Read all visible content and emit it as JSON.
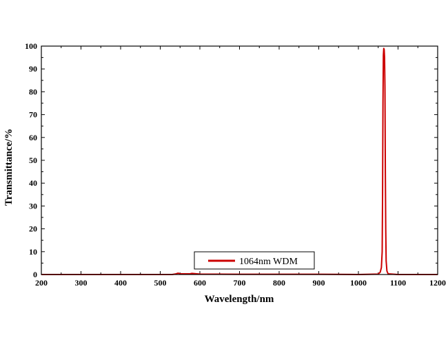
{
  "chart_data": {
    "type": "line",
    "xlabel": "Wavelength/nm",
    "ylabel": "Transmittance/%",
    "xlim": [
      200,
      1200
    ],
    "ylim": [
      0,
      100
    ],
    "x_ticks": [
      200,
      300,
      400,
      500,
      600,
      700,
      800,
      900,
      1000,
      1100,
      1200
    ],
    "y_ticks": [
      0,
      10,
      20,
      30,
      40,
      50,
      60,
      70,
      80,
      90,
      100
    ],
    "x_tick_labels": [
      "200",
      "300",
      "400",
      "500",
      "600",
      "700",
      "800",
      "900",
      "1000",
      "1100",
      "1200"
    ],
    "y_tick_labels": [
      "0",
      "10",
      "20",
      "30",
      "40",
      "50",
      "60",
      "70",
      "80",
      "90",
      "100"
    ],
    "grid": false,
    "legend_position": "bottom-center",
    "series": [
      {
        "name": "1064nm WDM",
        "color": "#cc0000",
        "x": [
          200,
          400,
          530,
          540,
          545,
          550,
          575,
          580,
          600,
          700,
          900,
          1000,
          1050,
          1055,
          1058,
          1060,
          1061,
          1062,
          1063,
          1064,
          1065,
          1066,
          1067,
          1068,
          1069,
          1070,
          1072,
          1075,
          1100,
          1200
        ],
        "y": [
          0,
          0,
          0,
          0.3,
          0.6,
          0.3,
          0.3,
          0.5,
          0.2,
          0.1,
          0.1,
          0,
          0.2,
          1,
          3,
          10,
          35,
          75,
          96,
          99,
          98.5,
          95,
          82,
          45,
          20,
          6,
          1.5,
          0.3,
          0,
          0
        ]
      }
    ]
  }
}
